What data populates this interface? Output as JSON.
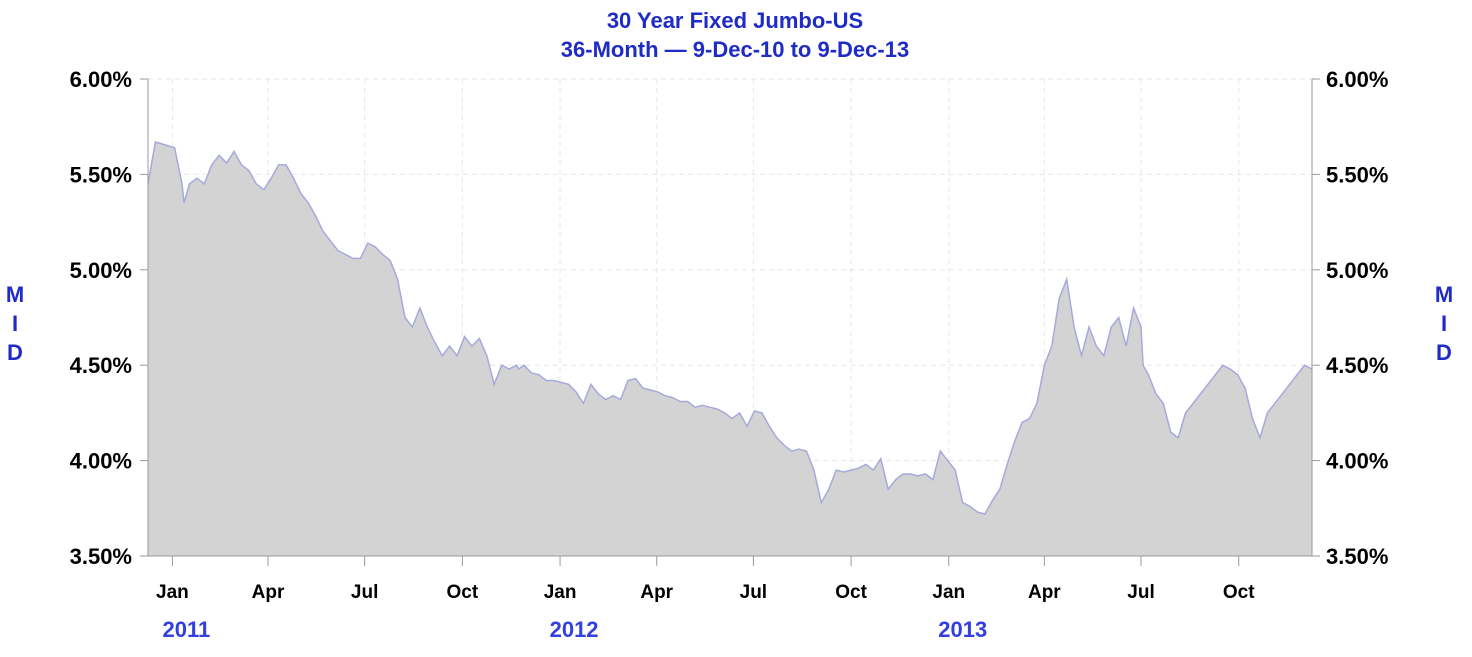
{
  "chart_data": {
    "type": "area",
    "title": "30 Year Fixed Jumbo-US",
    "subtitle": "36-Month — 9-Dec-10 to 9-Dec-13",
    "ylabel_left": "MID",
    "ylabel_right": "MID",
    "ylim": [
      3.5,
      6.0
    ],
    "y_ticks": [
      "6.00%",
      "5.50%",
      "5.00%",
      "4.50%",
      "4.00%",
      "3.50%"
    ],
    "y_tick_values": [
      6.0,
      5.5,
      5.0,
      4.5,
      4.0,
      3.5
    ],
    "xlim": [
      "2010-12-09",
      "2013-12-09"
    ],
    "x_month_ticks": [
      {
        "label": "Jan",
        "date": "2011-01-01"
      },
      {
        "label": "Apr",
        "date": "2011-04-01"
      },
      {
        "label": "Jul",
        "date": "2011-07-01"
      },
      {
        "label": "Oct",
        "date": "2011-10-01"
      },
      {
        "label": "Jan",
        "date": "2012-01-01"
      },
      {
        "label": "Apr",
        "date": "2012-04-01"
      },
      {
        "label": "Jul",
        "date": "2012-07-01"
      },
      {
        "label": "Oct",
        "date": "2012-10-01"
      },
      {
        "label": "Jan",
        "date": "2013-01-01"
      },
      {
        "label": "Apr",
        "date": "2013-04-01"
      },
      {
        "label": "Jul",
        "date": "2013-07-01"
      },
      {
        "label": "Oct",
        "date": "2013-10-01"
      }
    ],
    "x_year_labels": [
      {
        "label": "2011",
        "date": "2011-01-01"
      },
      {
        "label": "2012",
        "date": "2012-01-01"
      },
      {
        "label": "2013",
        "date": "2013-01-01"
      }
    ],
    "grid": true,
    "colors": {
      "fill": "#d3d3d3",
      "line": "#a6a9dc",
      "title": "#1f2bc6",
      "year": "#3340e0"
    },
    "series": [
      {
        "x": [
          "2010-12-09",
          "2010-12-16",
          "2010-12-22",
          "2011-01-03",
          "2011-01-10",
          "2011-01-12",
          "2011-01-17",
          "2011-01-24",
          "2011-01-31",
          "2011-02-07",
          "2011-02-14",
          "2011-02-21",
          "2011-02-28",
          "2011-03-07",
          "2011-03-14",
          "2011-03-21",
          "2011-03-28",
          "2011-04-04",
          "2011-04-11",
          "2011-04-18",
          "2011-04-25",
          "2011-05-02",
          "2011-05-09",
          "2011-05-16",
          "2011-05-23",
          "2011-05-30",
          "2011-06-06",
          "2011-06-13",
          "2011-06-20",
          "2011-06-27",
          "2011-07-04",
          "2011-07-11",
          "2011-07-18",
          "2011-07-25",
          "2011-08-01",
          "2011-08-08",
          "2011-08-15",
          "2011-08-22",
          "2011-08-29",
          "2011-09-05",
          "2011-09-12",
          "2011-09-19",
          "2011-09-26",
          "2011-10-03",
          "2011-10-10",
          "2011-10-17",
          "2011-10-24",
          "2011-10-31",
          "2011-11-07",
          "2011-11-14",
          "2011-11-21",
          "2011-11-23",
          "2011-11-28",
          "2011-12-05",
          "2011-12-12",
          "2011-12-19",
          "2011-12-26",
          "2012-01-02",
          "2012-01-09",
          "2012-01-16",
          "2012-01-23",
          "2012-01-30",
          "2012-02-06",
          "2012-02-13",
          "2012-02-20",
          "2012-02-27",
          "2012-03-05",
          "2012-03-12",
          "2012-03-19",
          "2012-03-26",
          "2012-04-02",
          "2012-04-09",
          "2012-04-16",
          "2012-04-23",
          "2012-04-30",
          "2012-05-07",
          "2012-05-14",
          "2012-05-21",
          "2012-05-28",
          "2012-06-04",
          "2012-06-11",
          "2012-06-18",
          "2012-06-25",
          "2012-07-02",
          "2012-07-09",
          "2012-07-16",
          "2012-07-23",
          "2012-07-30",
          "2012-08-06",
          "2012-08-13",
          "2012-08-20",
          "2012-08-27",
          "2012-09-03",
          "2012-09-10",
          "2012-09-17",
          "2012-09-24",
          "2012-10-01",
          "2012-10-08",
          "2012-10-15",
          "2012-10-22",
          "2012-10-29",
          "2012-11-05",
          "2012-11-12",
          "2012-11-19",
          "2012-11-26",
          "2012-12-03",
          "2012-12-10",
          "2012-12-17",
          "2012-12-24",
          "2012-12-31",
          "2013-01-07",
          "2013-01-14",
          "2013-01-21",
          "2013-01-28",
          "2013-02-04",
          "2013-02-11",
          "2013-02-18",
          "2013-02-25",
          "2013-03-04",
          "2013-03-11",
          "2013-03-18",
          "2013-03-25",
          "2013-04-01",
          "2013-04-08",
          "2013-04-15",
          "2013-04-22",
          "2013-04-29",
          "2013-05-06",
          "2013-05-13",
          "2013-05-20",
          "2013-05-27",
          "2013-06-03",
          "2013-06-10",
          "2013-06-17",
          "2013-06-24",
          "2013-07-01",
          "2013-07-03",
          "2013-07-08",
          "2013-07-15",
          "2013-07-22",
          "2013-07-29",
          "2013-08-05",
          "2013-08-12",
          "2013-08-19",
          "2013-08-26",
          "2013-09-02",
          "2013-09-09",
          "2013-09-16",
          "2013-09-23",
          "2013-09-30",
          "2013-10-07",
          "2013-10-14",
          "2013-10-21",
          "2013-10-28",
          "2013-11-04",
          "2013-11-11",
          "2013-11-18",
          "2013-11-25",
          "2013-12-02",
          "2013-12-09"
        ],
        "y": [
          5.45,
          5.67,
          5.66,
          5.64,
          5.45,
          5.35,
          5.45,
          5.48,
          5.45,
          5.55,
          5.6,
          5.56,
          5.62,
          5.55,
          5.52,
          5.45,
          5.42,
          5.48,
          5.55,
          5.55,
          5.48,
          5.4,
          5.35,
          5.28,
          5.2,
          5.15,
          5.1,
          5.08,
          5.06,
          5.06,
          5.14,
          5.12,
          5.08,
          5.05,
          4.95,
          4.75,
          4.7,
          4.8,
          4.7,
          4.62,
          4.55,
          4.6,
          4.55,
          4.65,
          4.6,
          4.64,
          4.55,
          4.4,
          4.5,
          4.48,
          4.5,
          4.48,
          4.5,
          4.46,
          4.45,
          4.42,
          4.42,
          4.41,
          4.4,
          4.36,
          4.3,
          4.4,
          4.35,
          4.32,
          4.34,
          4.32,
          4.42,
          4.43,
          4.38,
          4.37,
          4.36,
          4.34,
          4.33,
          4.31,
          4.31,
          4.28,
          4.29,
          4.28,
          4.27,
          4.25,
          4.22,
          4.25,
          4.18,
          4.26,
          4.25,
          4.18,
          4.12,
          4.08,
          4.05,
          4.06,
          4.05,
          3.95,
          3.78,
          3.85,
          3.95,
          3.94,
          3.95,
          3.96,
          3.98,
          3.95,
          4.01,
          3.85,
          3.9,
          3.93,
          3.93,
          3.92,
          3.93,
          3.9,
          4.05,
          4.0,
          3.95,
          3.78,
          3.76,
          3.73,
          3.72,
          3.79,
          3.85,
          3.98,
          4.1,
          4.2,
          4.22,
          4.3,
          4.5,
          4.6,
          4.85,
          4.95,
          4.7,
          4.55,
          4.7,
          4.6,
          4.55,
          4.7,
          4.75,
          4.6,
          4.8,
          4.7,
          4.5,
          4.45,
          4.35,
          4.3,
          4.15,
          4.12,
          4.25,
          4.3,
          4.35,
          4.4,
          4.45,
          4.5,
          4.48,
          4.45,
          4.38,
          4.22,
          4.12,
          4.25,
          4.3,
          4.35,
          4.4,
          4.45,
          4.5,
          4.48
        ]
      }
    ]
  }
}
